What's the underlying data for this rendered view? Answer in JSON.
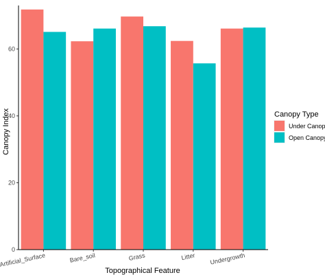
{
  "chart_data": {
    "type": "bar",
    "categories": [
      "Artificial_Surface",
      "Bare_soil",
      "Grass",
      "Litter",
      "Undergrowth"
    ],
    "series": [
      {
        "name": "Under Canopy",
        "values": [
          71.8,
          62.3,
          69.7,
          62.4,
          66.1
        ],
        "color": "#F8766D"
      },
      {
        "name": "Open Canopy",
        "values": [
          65.1,
          66.1,
          66.8,
          55.7,
          66.4
        ],
        "color": "#00BFC4"
      }
    ],
    "xlabel": "Topographical Feature",
    "ylabel": "Canopy Index",
    "ylim": [
      0,
      73
    ],
    "yticks": [
      0,
      20,
      40,
      60
    ],
    "legend": {
      "title": "Canopy Type",
      "position": "right"
    },
    "grid": false
  }
}
